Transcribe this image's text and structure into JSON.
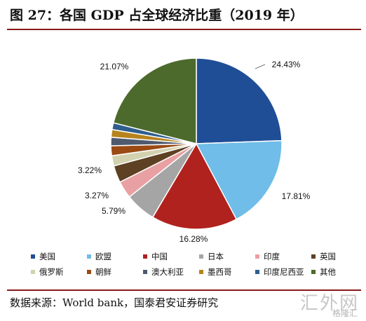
{
  "title": "图 27：各国 GDP 占全球经济比重（2019 年）",
  "source": "数据来源：World bank，国泰君安证券研究",
  "watermark": {
    "main": "汇外网",
    "sub": "格隆汇"
  },
  "chart_data": {
    "type": "pie",
    "title": "",
    "slices": [
      {
        "name": "美国",
        "value": 24.43,
        "label": "24.43%",
        "color": "#1f4e96"
      },
      {
        "name": "欧盟",
        "value": 17.81,
        "label": "17.81%",
        "color": "#6fbde8"
      },
      {
        "name": "中国",
        "value": 16.28,
        "label": "16.28%",
        "color": "#b0221e"
      },
      {
        "name": "日本",
        "value": 5.79,
        "label": "5.79%",
        "color": "#a5a5a5"
      },
      {
        "name": "印度",
        "value": 3.27,
        "label": "3.27%",
        "color": "#e8a0a2"
      },
      {
        "name": "英国",
        "value": 3.22,
        "label": "3.22%",
        "color": "#5e4023"
      },
      {
        "name": "俄罗斯",
        "value": 1.94,
        "label": "",
        "color": "#d2d2b0"
      },
      {
        "name": "朝鲜",
        "value": 1.87,
        "label": "",
        "color": "#9b4a14"
      },
      {
        "name": "澳大利亚",
        "value": 1.59,
        "label": "",
        "color": "#4f5a6e"
      },
      {
        "name": "墨西哥",
        "value": 1.46,
        "label": "",
        "color": "#b7831e"
      },
      {
        "name": "印度尼西亚",
        "value": 1.27,
        "label": "",
        "color": "#2f5d8e"
      },
      {
        "name": "其他",
        "value": 21.07,
        "label": "21.07%",
        "color": "#4c6a2c"
      }
    ],
    "legend_placement": "bottom"
  }
}
